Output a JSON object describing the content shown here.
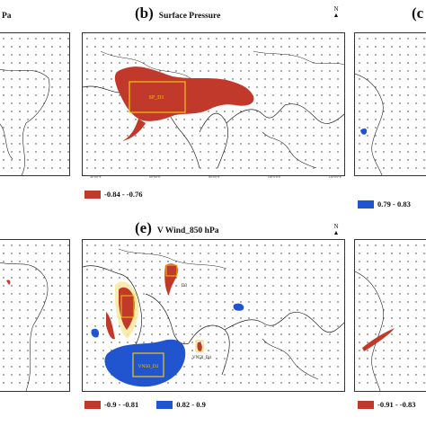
{
  "colors": {
    "negative": "#c0392b",
    "positive": "#2155cf",
    "box": "#f1c40f",
    "land": "#222222"
  },
  "panels": {
    "a": {
      "title_fragment": "Pa"
    },
    "b": {
      "letter": "(b)",
      "name": "Surface Pressure",
      "box_label": "SP_D1",
      "legend": [
        {
          "label": "-0.84 - -0.76",
          "color": "#c0392b"
        }
      ]
    },
    "c": {
      "letter": "(c",
      "legend": [
        {
          "label": "0.79 - 0.83",
          "color": "#2155cf"
        }
      ]
    },
    "e": {
      "letter": "(e)",
      "name": "V Wind_850 hPa",
      "box_labels": {
        "d3": "D3",
        "d2": "VN50_D2",
        "d4": "VN50_D4"
      },
      "legend": [
        {
          "label": "-0.9 - -0.81",
          "color": "#c0392b"
        },
        {
          "label": "0.82 - 0.9",
          "color": "#2155cf"
        }
      ]
    },
    "f": {
      "legend": [
        {
          "label": "-0.91 - -0.83",
          "color": "#c0392b"
        }
      ]
    }
  },
  "north_label": "N",
  "lon_ticks": [
    "40°0'0\"E",
    "60°0'0\"E",
    "80°0'0\"E",
    "100°0'0\"E",
    "120°0'0\"E"
  ]
}
